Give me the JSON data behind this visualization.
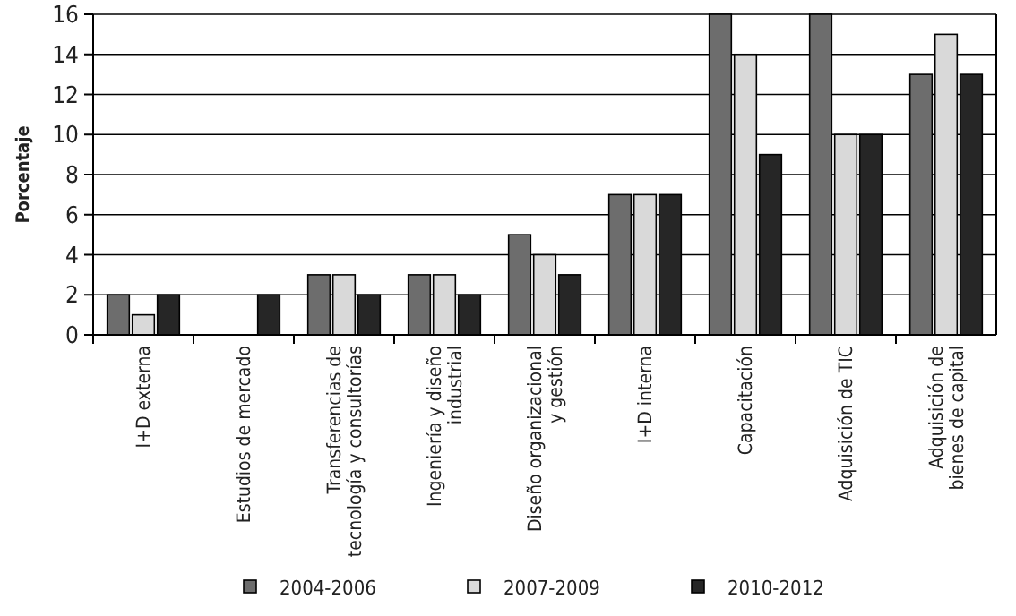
{
  "chart_data": {
    "type": "bar",
    "ylabel": "Porcentaje",
    "categories": [
      "I+D externa",
      "Estudios de mercado",
      "Transferencias de\ntecnología y consultorías",
      "Ingeniería  y diseño\nindustrial",
      "Diseño organizacional\ny gestión",
      "I+D interna",
      "Capacitación",
      "Adquisición de TIC",
      "Adquisición de\nbienes de capital"
    ],
    "series": [
      {
        "name": "2004-2006",
        "color": "#6d6d6d",
        "values": [
          2,
          0,
          3,
          3,
          5,
          7,
          16,
          16,
          13
        ]
      },
      {
        "name": "2007-2009",
        "color": "#d9d9d9",
        "values": [
          1,
          0,
          3,
          3,
          4,
          7,
          14,
          10,
          15
        ]
      },
      {
        "name": "2010-2012",
        "color": "#262626",
        "values": [
          2,
          2,
          2,
          2,
          3,
          7,
          9,
          10,
          13
        ]
      }
    ],
    "ylim": [
      0,
      16
    ],
    "yticks": [
      0,
      2,
      4,
      6,
      8,
      10,
      12,
      14,
      16
    ],
    "grid": "y",
    "legend": "bottom"
  }
}
